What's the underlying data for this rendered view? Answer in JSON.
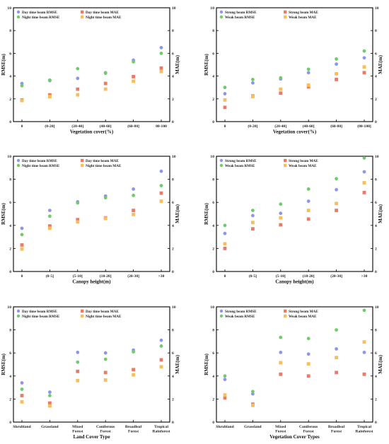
{
  "colors": {
    "day_rmse": "#8f96ea",
    "night_rmse": "#6fcc6a",
    "day_mae": "#eb7a66",
    "night_mae": "#f8be5c"
  },
  "chart_data": [
    {
      "type": "scatter",
      "categories": [
        "0",
        "(0-20]",
        "(20-40]",
        "(40-60]",
        "(60-80]",
        "80-100"
      ],
      "xlabel": "Vegetation cover(%)",
      "ylabel": "RMSE(m)",
      "y2label": "MAE(m)",
      "ylim": [
        0,
        10
      ],
      "y2lim": [
        0,
        10
      ],
      "legend_position": "top-left",
      "series": [
        {
          "name": "Day time beam RMSE",
          "axis": "left",
          "marker": "circle",
          "values": [
            3.35,
            3.6,
            3.8,
            4.25,
            5.4,
            6.5
          ]
        },
        {
          "name": "Night time beam RMSE",
          "axis": "left",
          "marker": "circle",
          "values": [
            3.15,
            3.65,
            4.65,
            4.3,
            5.25,
            6.0
          ]
        },
        {
          "name": "Day time beam MAE",
          "axis": "right",
          "marker": "square",
          "values": [
            1.9,
            2.35,
            2.85,
            3.35,
            3.95,
            4.7
          ]
        },
        {
          "name": "Night time beam MAE",
          "axis": "right",
          "marker": "square",
          "values": [
            1.85,
            2.2,
            2.35,
            2.85,
            3.55,
            4.4
          ]
        }
      ]
    },
    {
      "type": "scatter",
      "categories": [
        "0",
        "(0-20]",
        "(20-40]",
        "(40-60]",
        "(60-80]",
        "(80-100]"
      ],
      "xlabel": "Vegetation cover(%)",
      "ylabel": "RMSE(m)",
      "y2label": "MAE(m)",
      "ylim": [
        0,
        10
      ],
      "y2lim": [
        0,
        10
      ],
      "legend_position": "top-left",
      "series": [
        {
          "name": "Strong beam RMSE",
          "axis": "left",
          "marker": "circle",
          "values": [
            2.45,
            3.4,
            3.75,
            4.3,
            5.05,
            5.6
          ]
        },
        {
          "name": "Weak beam RMSE",
          "axis": "left",
          "marker": "circle",
          "values": [
            3.0,
            3.7,
            3.85,
            4.6,
            5.5,
            6.2
          ]
        },
        {
          "name": "Strong beam MAE",
          "axis": "right",
          "marker": "square",
          "values": [
            1.25,
            2.25,
            2.5,
            3.05,
            3.7,
            4.3
          ]
        },
        {
          "name": "Weak beam MAE",
          "axis": "right",
          "marker": "square",
          "values": [
            1.9,
            2.2,
            2.85,
            3.2,
            4.2,
            4.8
          ]
        }
      ]
    },
    {
      "type": "scatter",
      "categories": [
        "0",
        "(0-5]",
        "(5-10]",
        "(10-20]",
        "(20-30]",
        ">30"
      ],
      "xlabel": "Canopy height(m)",
      "ylabel": "RMSE(m)",
      "y2label": "MAE(m)",
      "ylim": [
        0,
        10
      ],
      "y2lim": [
        0,
        10
      ],
      "legend_position": "top-left",
      "series": [
        {
          "name": "Day time beam RMSE",
          "axis": "left",
          "marker": "circle",
          "values": [
            3.75,
            5.3,
            6.05,
            6.55,
            7.15,
            8.7
          ]
        },
        {
          "name": "Night time beam RMSE",
          "axis": "left",
          "marker": "circle",
          "values": [
            3.2,
            4.8,
            5.95,
            6.4,
            6.6,
            7.45
          ]
        },
        {
          "name": "Day time beam MAE",
          "axis": "right",
          "marker": "square",
          "values": [
            2.3,
            3.95,
            4.5,
            4.65,
            5.3,
            6.8
          ]
        },
        {
          "name": "Night time beam MAE",
          "axis": "right",
          "marker": "square",
          "values": [
            1.95,
            3.75,
            4.3,
            4.6,
            4.95,
            6.1
          ]
        }
      ]
    },
    {
      "type": "scatter",
      "categories": [
        "0",
        "(0-5]",
        "(5-10]",
        "(10-20]",
        "(20-30]",
        ">30"
      ],
      "xlabel": "Canopy height(m)",
      "ylabel": "RMSE(m)",
      "y2label": "MAE(m)",
      "ylim": [
        0,
        10
      ],
      "y2lim": [
        0,
        10
      ],
      "legend_position": "top-left",
      "series": [
        {
          "name": "Strong beam RMSE",
          "axis": "left",
          "marker": "circle",
          "values": [
            3.3,
            4.85,
            5.05,
            6.1,
            7.1,
            8.65
          ]
        },
        {
          "name": "Weak beam RMSE",
          "axis": "left",
          "marker": "circle",
          "values": [
            4.0,
            5.3,
            5.85,
            7.15,
            8.05,
            9.85
          ]
        },
        {
          "name": "Strong beam MAE",
          "axis": "right",
          "marker": "square",
          "values": [
            2.0,
            3.7,
            4.05,
            4.55,
            5.3,
            6.85
          ]
        },
        {
          "name": "Weak beam MAE",
          "axis": "right",
          "marker": "square",
          "values": [
            2.4,
            4.25,
            4.65,
            5.3,
            5.9,
            7.7
          ]
        }
      ]
    },
    {
      "type": "scatter",
      "categories": [
        "Shrubland",
        "Grassland",
        "Mixed\nForest",
        "Coniferous\nForest",
        "Broadleaf\nForest",
        "Tropical\nRainforest"
      ],
      "xlabel": "Land Cover Type",
      "ylabel": "RMSE(m)",
      "y2label": "MAE(m)",
      "ylim": [
        0,
        10
      ],
      "y2lim": [
        0,
        10
      ],
      "legend_position": "top-left",
      "series": [
        {
          "name": "Day time beam RMSE",
          "axis": "left",
          "marker": "circle",
          "values": [
            3.4,
            2.6,
            6.05,
            6.0,
            6.25,
            7.1
          ]
        },
        {
          "name": "Night time beam RMSE",
          "axis": "left",
          "marker": "circle",
          "values": [
            2.85,
            2.3,
            5.2,
            5.45,
            6.1,
            6.6
          ]
        },
        {
          "name": "Day time beam MAE",
          "axis": "right",
          "marker": "square",
          "values": [
            2.3,
            1.65,
            4.4,
            4.3,
            4.55,
            5.4
          ]
        },
        {
          "name": "Night time beam MAE",
          "axis": "right",
          "marker": "square",
          "values": [
            1.75,
            1.4,
            3.6,
            3.65,
            4.1,
            4.8
          ]
        }
      ]
    },
    {
      "type": "scatter",
      "categories": [
        "Shrubland",
        "Grassland",
        "Mixed\nForest",
        "Coniferous\nForest",
        "Broadleaf\nForest",
        "Tropical\nRainforest"
      ],
      "xlabel": "Vegetation Cover Types",
      "ylabel": "RMSE(m)",
      "y2label": "MAE(m)",
      "ylim": [
        0,
        10
      ],
      "y2lim": [
        0,
        10
      ],
      "legend_position": "top-left",
      "series": [
        {
          "name": "Strong beam RMSE",
          "axis": "left",
          "marker": "circle",
          "values": [
            3.7,
            2.45,
            6.05,
            5.9,
            6.35,
            6.05
          ]
        },
        {
          "name": "Weak beam RMSE",
          "axis": "left",
          "marker": "circle",
          "values": [
            4.0,
            2.65,
            7.35,
            7.25,
            8.0,
            9.7
          ]
        },
        {
          "name": "Strong beam MAE",
          "axis": "right",
          "marker": "square",
          "values": [
            2.1,
            1.55,
            4.15,
            4.0,
            4.3,
            4.15
          ]
        },
        {
          "name": "Weak beam MAE",
          "axis": "right",
          "marker": "square",
          "values": [
            2.35,
            1.45,
            5.15,
            5.05,
            5.6,
            6.95
          ]
        }
      ]
    }
  ]
}
